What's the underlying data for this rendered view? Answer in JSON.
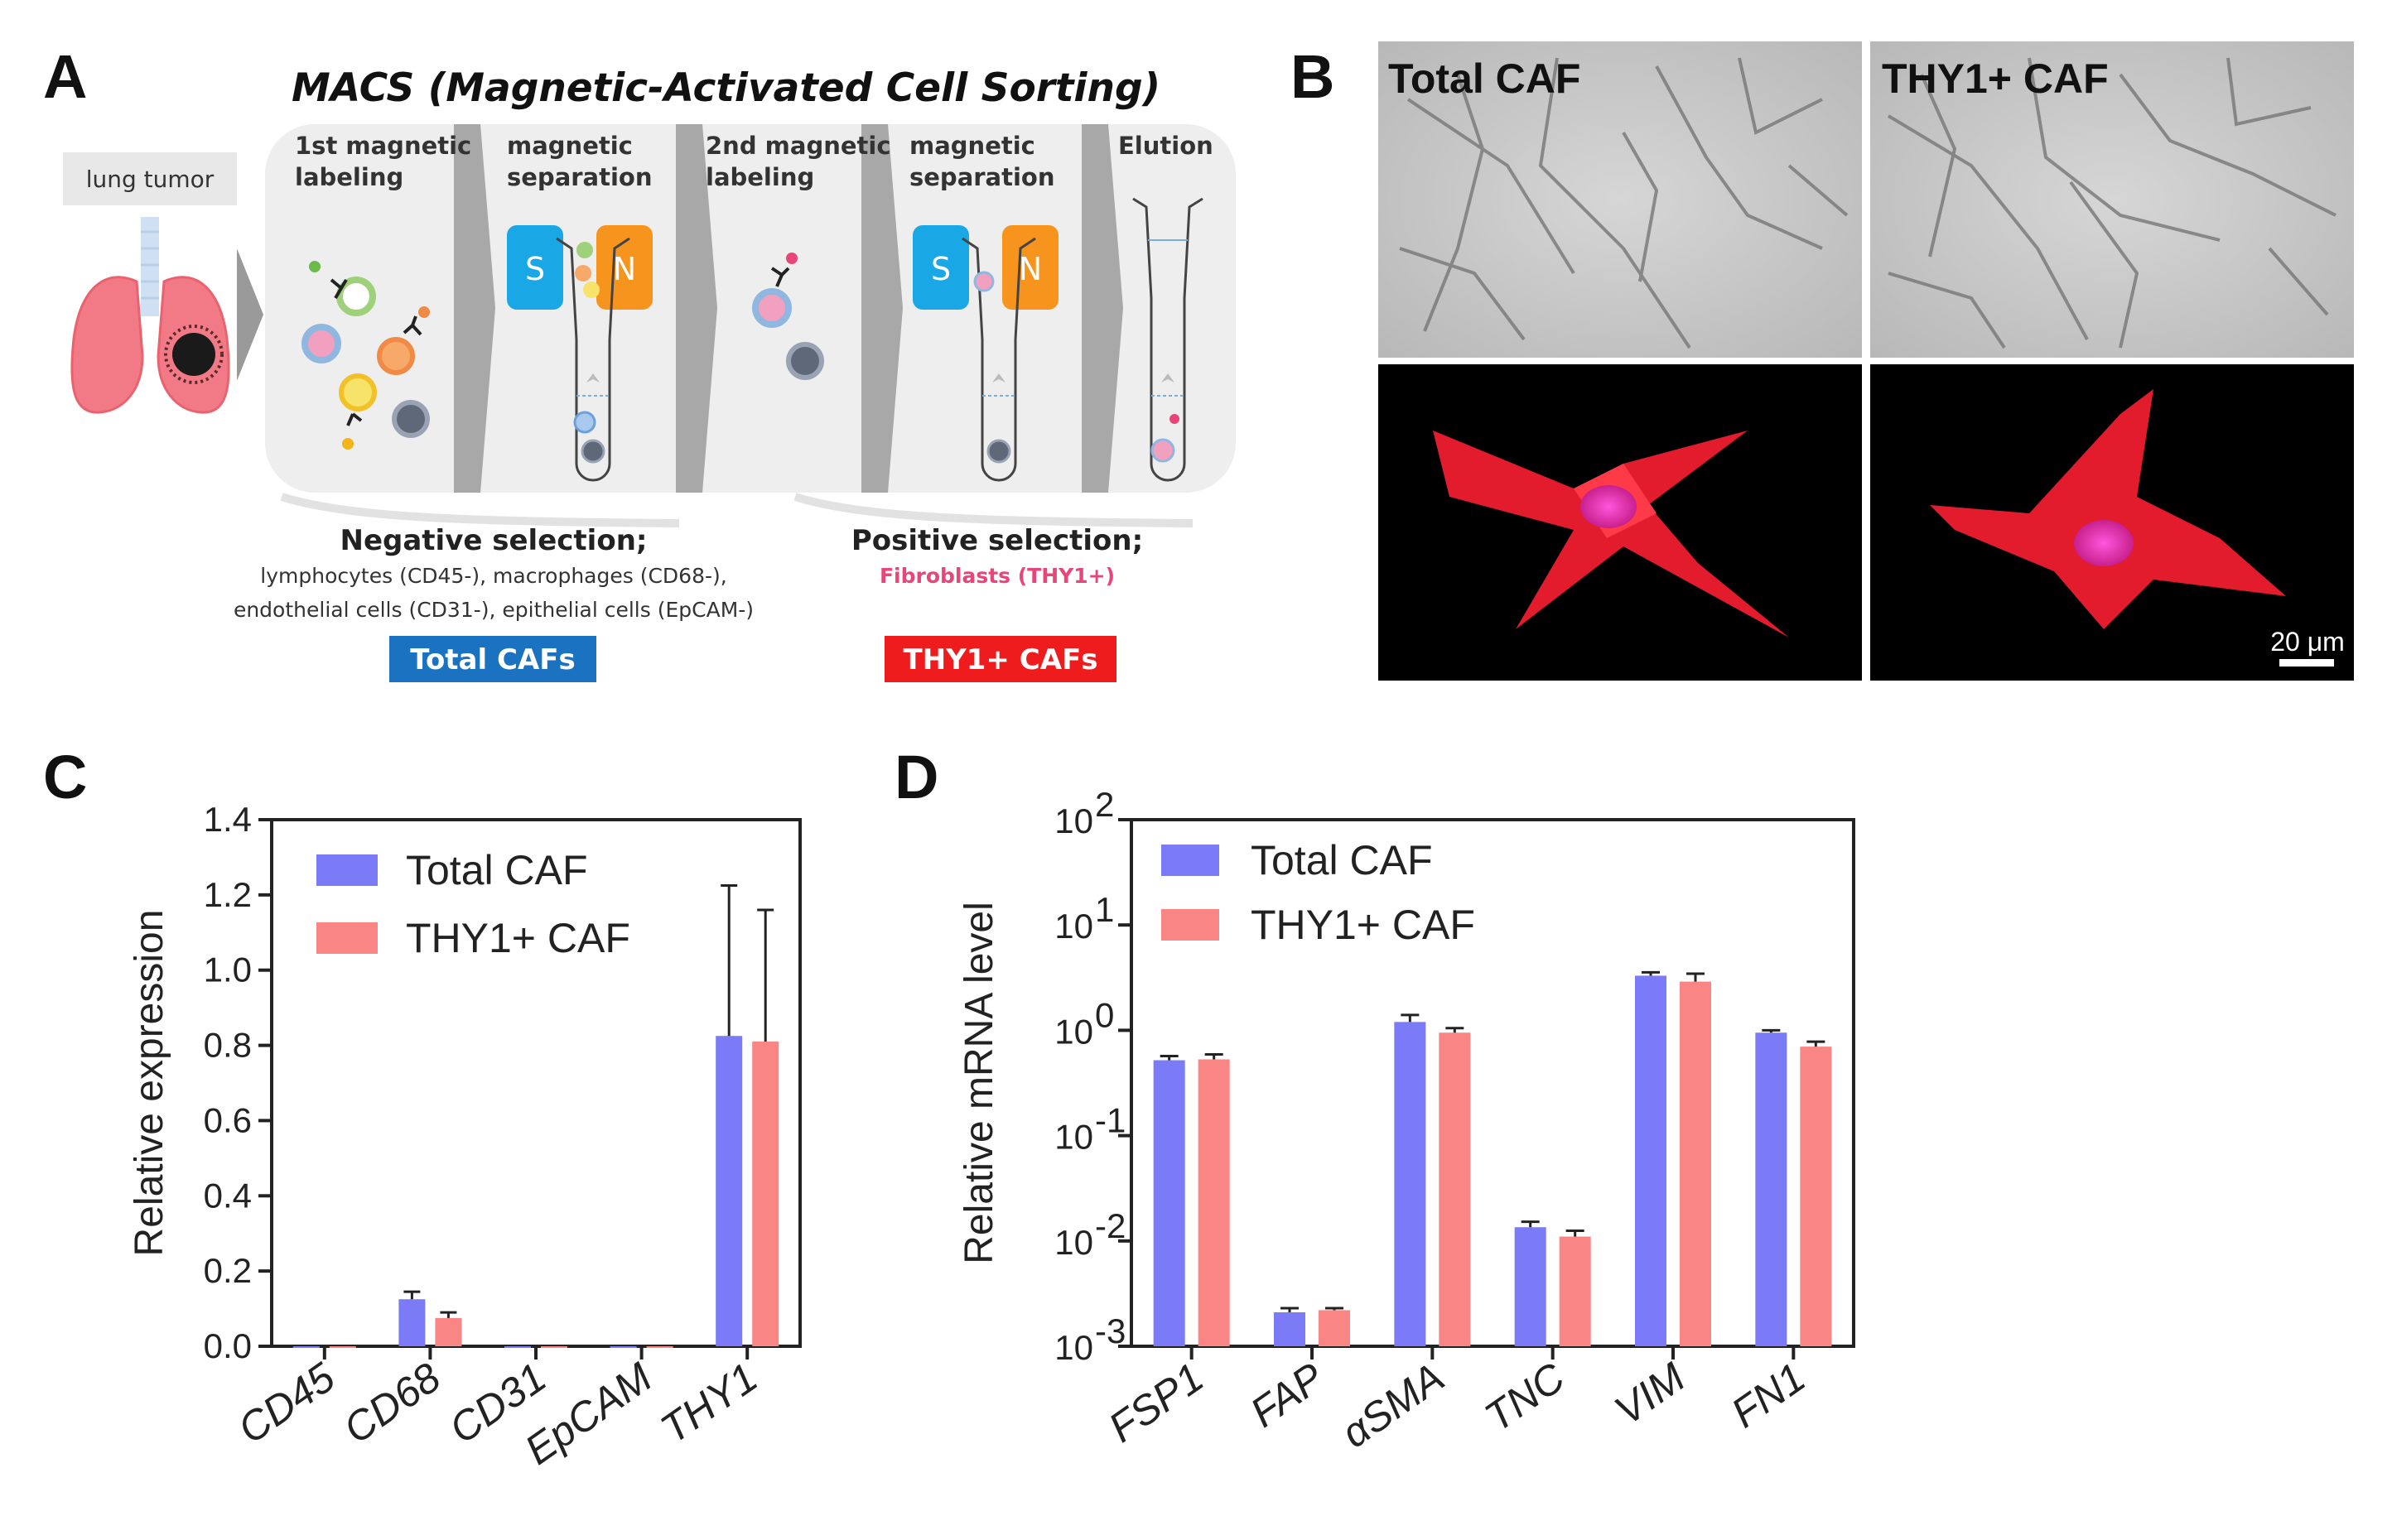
{
  "panel_a": {
    "letter": "A",
    "title": "MACS (Magnetic-Activated Cell Sorting)",
    "tumor_label": "lung tumor",
    "steps": [
      {
        "line1": "1st magnetic",
        "line2": "labeling"
      },
      {
        "line1": "magnetic",
        "line2": "separation"
      },
      {
        "line1": "2nd magnetic",
        "line2": "labeling"
      },
      {
        "line1": "magnetic",
        "line2": "separation"
      },
      {
        "line1": "Elution",
        "line2": ""
      }
    ],
    "magnet_s": "S",
    "magnet_n": "N",
    "negative": {
      "heading": "Negative selection;",
      "line1": "lymphocytes (CD45-), macrophages (CD68-),",
      "line2": "endothelial cells (CD31-), epithelial cells (EpCAM-)",
      "badge": "Total CAFs"
    },
    "positive": {
      "heading": "Positive selection;",
      "line1": "Fibroblasts (THY1+)",
      "badge": "THY1+ CAFs"
    },
    "colors": {
      "total_badge": "#1a72c0",
      "thy1_badge": "#ee1c1c",
      "pink_text": "#e8467a",
      "magnet_s": "#1aa7e6",
      "magnet_n": "#f7941d"
    }
  },
  "panel_b": {
    "letter": "B",
    "labels": [
      "Total CAF",
      "THY1+ CAF"
    ],
    "scale_bar": "20 μm"
  },
  "chart_data": [
    {
      "panel": "C",
      "type": "bar",
      "categories": [
        "CD45",
        "CD68",
        "CD31",
        "EpCAM",
        "THY1"
      ],
      "series": [
        {
          "name": "Total CAF",
          "color": "#7b7bf7",
          "values": [
            0.0,
            0.125,
            0.0,
            0.0,
            0.825
          ],
          "errors": [
            0.0,
            0.02,
            0.0,
            0.0,
            0.4
          ]
        },
        {
          "name": "THY1+ CAF",
          "color": "#f98585",
          "values": [
            0.0,
            0.075,
            0.0,
            0.0,
            0.81
          ],
          "errors": [
            0.0,
            0.015,
            0.0,
            0.0,
            0.35
          ]
        }
      ],
      "xlabel": "",
      "ylabel": "Relative expression",
      "ylim": [
        0,
        1.4
      ],
      "yticks": [
        "0.0",
        "0.2",
        "0.4",
        "0.6",
        "0.8",
        "1.0",
        "1.2",
        "1.4"
      ],
      "scale": "linear"
    },
    {
      "panel": "D",
      "type": "bar",
      "categories": [
        "FSP1",
        "FAP",
        "αSMA",
        "TNC",
        "VIM",
        "FN1"
      ],
      "series": [
        {
          "name": "Total CAF",
          "color": "#7b7bf7",
          "values": [
            0.52,
            0.0021,
            1.2,
            0.0135,
            3.3,
            0.95
          ],
          "errors_up": [
            0.57,
            0.0023,
            1.4,
            0.0152,
            3.55,
            1.0
          ]
        },
        {
          "name": "THY1+ CAF",
          "color": "#f98585",
          "values": [
            0.53,
            0.0022,
            0.95,
            0.011,
            2.9,
            0.7
          ],
          "errors_up": [
            0.59,
            0.0023,
            1.05,
            0.0125,
            3.45,
            0.78
          ]
        }
      ],
      "xlabel": "",
      "ylabel": "Relative mRNA level",
      "ylim": [
        0.001,
        100
      ],
      "ytick_exponents": [
        "-3",
        "-2",
        "-1",
        "0",
        "1",
        "2"
      ],
      "ytick_base": "10",
      "scale": "log"
    }
  ]
}
